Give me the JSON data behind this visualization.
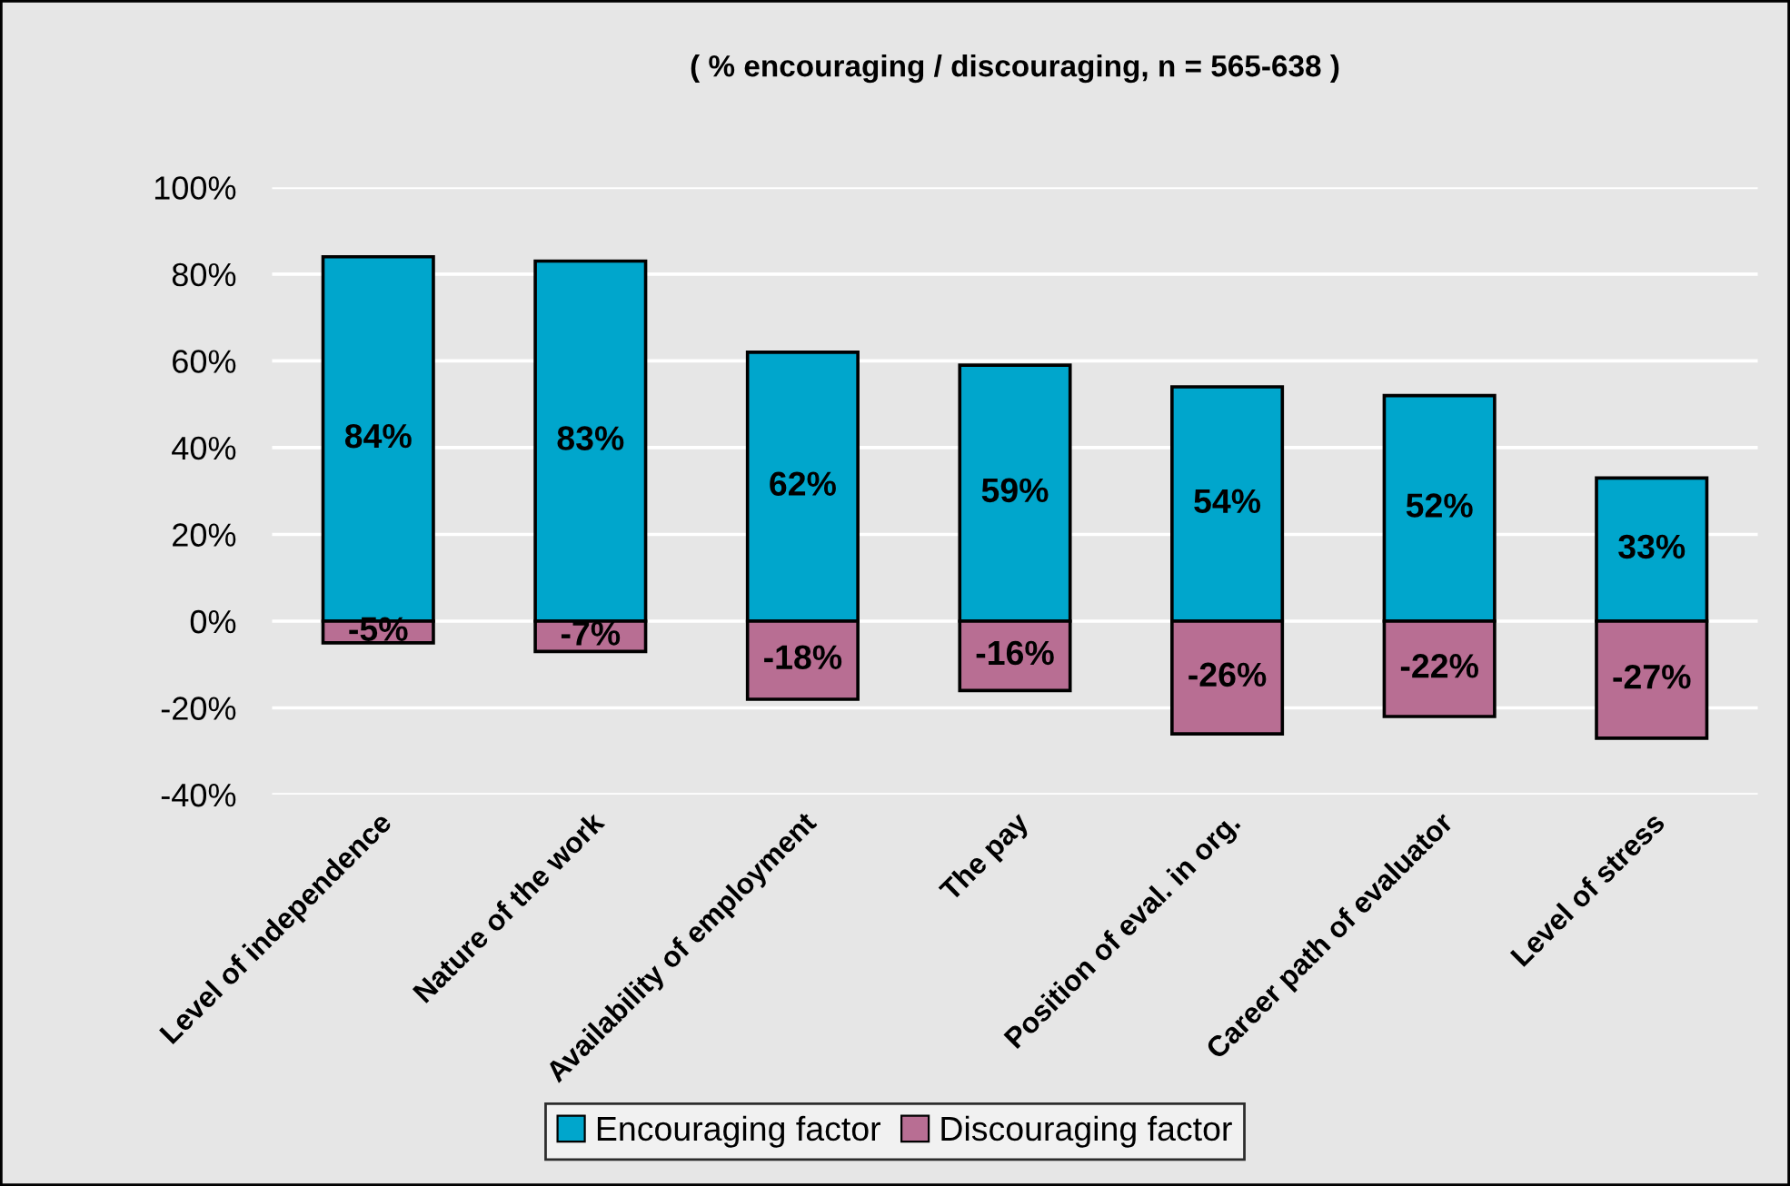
{
  "chart_data": {
    "type": "bar",
    "title": "( % encouraging / discouraging, n = 565-638 )",
    "categories": [
      "Level of independence",
      "Nature of the work",
      "Availability of employment",
      "The pay",
      "Position of eval. in org.",
      "Career path of evaluator",
      "Level of stress"
    ],
    "series": [
      {
        "name": "Encouraging factor",
        "color": "#00a6cc",
        "values": [
          84,
          83,
          62,
          59,
          54,
          52,
          33
        ],
        "value_labels": [
          "84%",
          "83%",
          "62%",
          "59%",
          "54%",
          "52%",
          "33%"
        ]
      },
      {
        "name": "Discouraging factor",
        "color": "#b86e93",
        "values": [
          -5,
          -7,
          -18,
          -16,
          -26,
          -22,
          -27
        ],
        "value_labels": [
          "-5%",
          "-7%",
          "-18%",
          "-16%",
          "-26%",
          "-22%",
          "-27%"
        ]
      }
    ],
    "stacked": true,
    "ylim": [
      -40,
      100
    ],
    "yticks": [
      {
        "value": -40,
        "label": "-40%"
      },
      {
        "value": -20,
        "label": "-20%"
      },
      {
        "value": 0,
        "label": "0%"
      },
      {
        "value": 20,
        "label": "20%"
      },
      {
        "value": 40,
        "label": "40%"
      },
      {
        "value": 60,
        "label": "60%"
      },
      {
        "value": 80,
        "label": "80%"
      },
      {
        "value": 100,
        "label": "100%"
      }
    ],
    "grid": "y",
    "legend": "bottom"
  }
}
